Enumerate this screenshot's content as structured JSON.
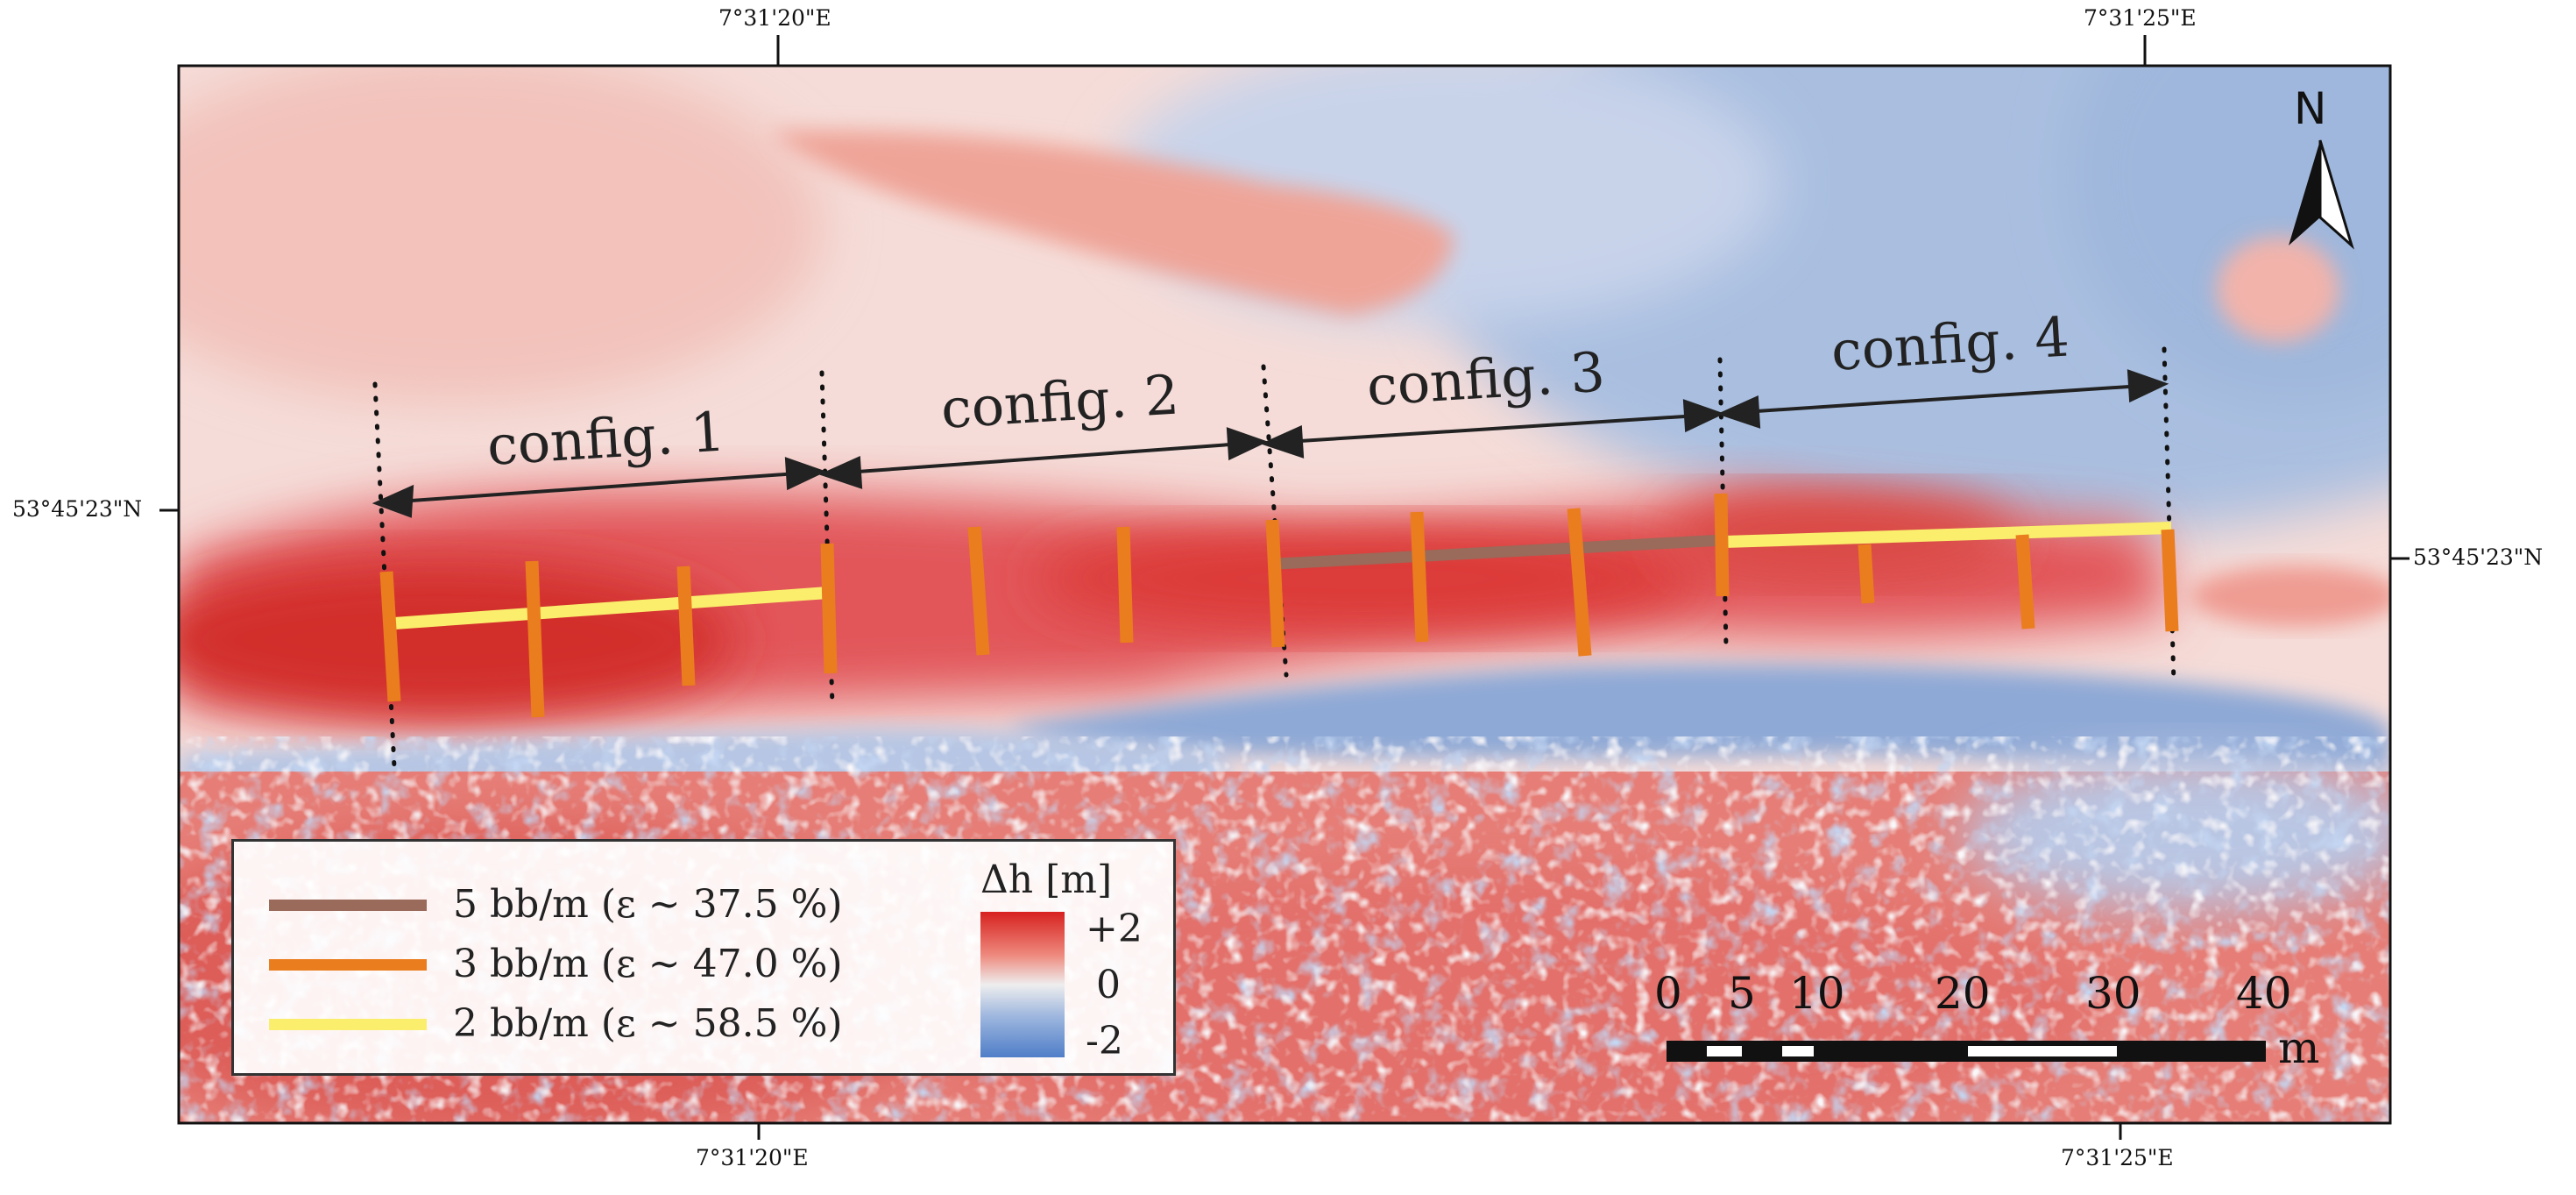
{
  "coordinates": {
    "top_left": "7°31'20\"E",
    "top_right": "7°31'25\"E",
    "bottom_left": "7°31'20\"E",
    "bottom_right": "7°31'25\"E",
    "left": "53°45'23\"N",
    "right": "53°45'23\"N"
  },
  "configs": [
    "config. 1",
    "config. 2",
    "config. 3",
    "config. 4"
  ],
  "legend": {
    "items": [
      {
        "label": "5 bb/m (ε ~ 37.5 %)",
        "color": "#9a6a5a"
      },
      {
        "label": "3 bb/m (ε ~ 47.0 %)",
        "color": "#ea7d1e"
      },
      {
        "label": "2 bb/m (ε ~ 58.5 %)",
        "color": "#fbee6c"
      }
    ],
    "colorbar_title": "Δh [m]",
    "colorbar_max": "+2",
    "colorbar_mid": "0",
    "colorbar_min": "-2",
    "colorbar_colors": {
      "high": "#d7211f",
      "mid": "#eeeeee",
      "low": "#4f7ec8"
    }
  },
  "scalebar": {
    "labels": [
      "0",
      "5",
      "10",
      "20",
      "30",
      "40"
    ],
    "unit": "m"
  },
  "north_arrow": "N"
}
